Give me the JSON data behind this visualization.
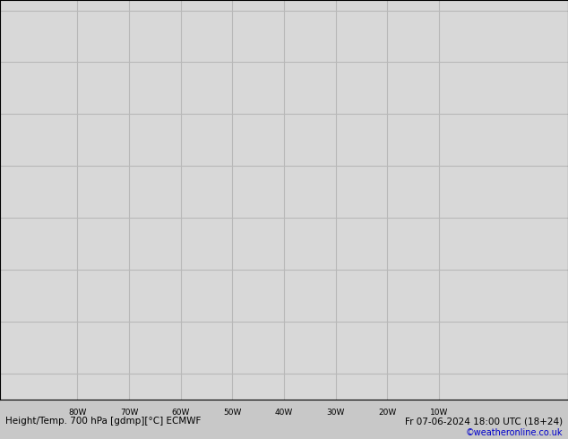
{
  "title_left": "Height/Temp. 700 hPa [gdmp][°C] ECMWF",
  "title_right": "Fr 07-06-2024 18:00 UTC (18+24)",
  "credit": "©weatheronline.co.uk",
  "background_color": "#c8c8c8",
  "land_color": "#c8f0a0",
  "land_border_color": "#909090",
  "water_color": "#d8d8d8",
  "grid_color": "#b8b8b8",
  "bottom_bar_color": "#e8e8e8",
  "xlim": [
    -95,
    15
  ],
  "ylim": [
    -5,
    72
  ],
  "xticks": [
    -80,
    -70,
    -60,
    -50,
    -40,
    -30,
    -20,
    -10
  ],
  "xlabel_vals": [
    "80W",
    "70W",
    "60W",
    "50W",
    "40W",
    "30W",
    "20W",
    "10W"
  ],
  "contour_color_black": "#000000",
  "contour_color_magenta": "#ff00cc"
}
